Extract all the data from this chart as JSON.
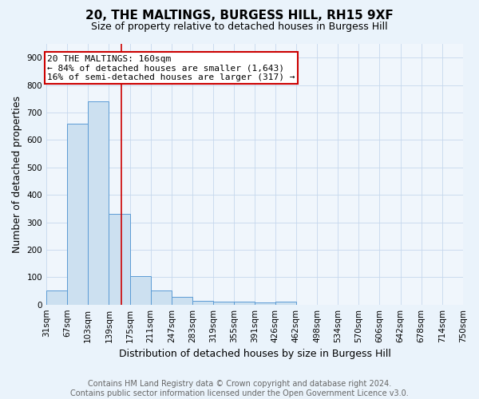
{
  "title": "20, THE MALTINGS, BURGESS HILL, RH15 9XF",
  "subtitle": "Size of property relative to detached houses in Burgess Hill",
  "xlabel": "Distribution of detached houses by size in Burgess Hill",
  "ylabel": "Number of detached properties",
  "bin_edges": [
    31,
    67,
    103,
    139,
    175,
    211,
    247,
    283,
    319,
    355,
    391,
    426,
    462,
    498,
    534,
    570,
    606,
    642,
    678,
    714,
    750
  ],
  "bar_heights": [
    50,
    660,
    740,
    330,
    105,
    50,
    27,
    15,
    10,
    10,
    7,
    10,
    0,
    0,
    0,
    0,
    0,
    0,
    0,
    0
  ],
  "bar_color": "#cce0f0",
  "bar_edge_color": "#5b9bd5",
  "property_size": 160,
  "property_line_color": "#cc0000",
  "annotation_text": "20 THE MALTINGS: 160sqm\n← 84% of detached houses are smaller (1,643)\n16% of semi-detached houses are larger (317) →",
  "annotation_box_color": "#ffffff",
  "annotation_box_edge_color": "#cc0000",
  "ylim": [
    0,
    950
  ],
  "yticks": [
    0,
    100,
    200,
    300,
    400,
    500,
    600,
    700,
    800,
    900
  ],
  "footer_text": "Contains HM Land Registry data © Crown copyright and database right 2024.\nContains public sector information licensed under the Open Government Licence v3.0.",
  "background_color": "#eaf3fb",
  "plot_bg_color": "#f0f6fc",
  "grid_color": "#c5d8ed",
  "title_fontsize": 11,
  "subtitle_fontsize": 9,
  "axis_label_fontsize": 9,
  "tick_fontsize": 7.5,
  "footer_fontsize": 7,
  "annotation_fontsize": 8
}
